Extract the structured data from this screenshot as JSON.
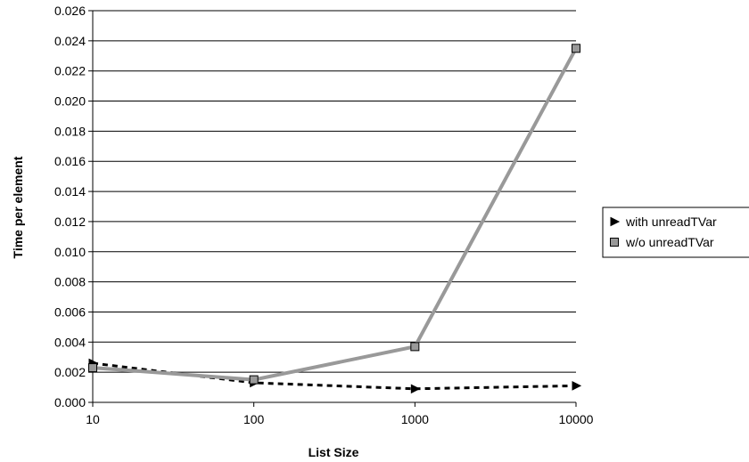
{
  "chart_data": {
    "type": "line",
    "title": "",
    "xlabel": "List Size",
    "ylabel": "Time per element",
    "x_scale": "log",
    "x": [
      10,
      100,
      1000,
      10000
    ],
    "x_tick_labels": [
      "10",
      "100",
      "1000",
      "10000"
    ],
    "ylim": [
      0,
      0.026
    ],
    "y_ticks": [
      0,
      0.002,
      0.004,
      0.006,
      0.008,
      0.01,
      0.012,
      0.014,
      0.016,
      0.018,
      0.02,
      0.022,
      0.024,
      0.026
    ],
    "y_tick_labels": [
      "0.000",
      "0.002",
      "0.004",
      "0.006",
      "0.008",
      "0.010",
      "0.012",
      "0.014",
      "0.016",
      "0.018",
      "0.020",
      "0.022",
      "0.024",
      "0.026"
    ],
    "grid": "horizontal",
    "legend_position": "right",
    "series": [
      {
        "name": "with unreadTVar",
        "values": [
          0.0026,
          0.0013,
          0.0009,
          0.0011
        ],
        "color": "#000000",
        "line_style": "dashed",
        "marker": "triangle-right"
      },
      {
        "name": "w/o unreadTVar",
        "values": [
          0.0023,
          0.0015,
          0.0037,
          0.0235
        ],
        "color": "#999999",
        "line_style": "solid",
        "marker": "square"
      }
    ]
  }
}
